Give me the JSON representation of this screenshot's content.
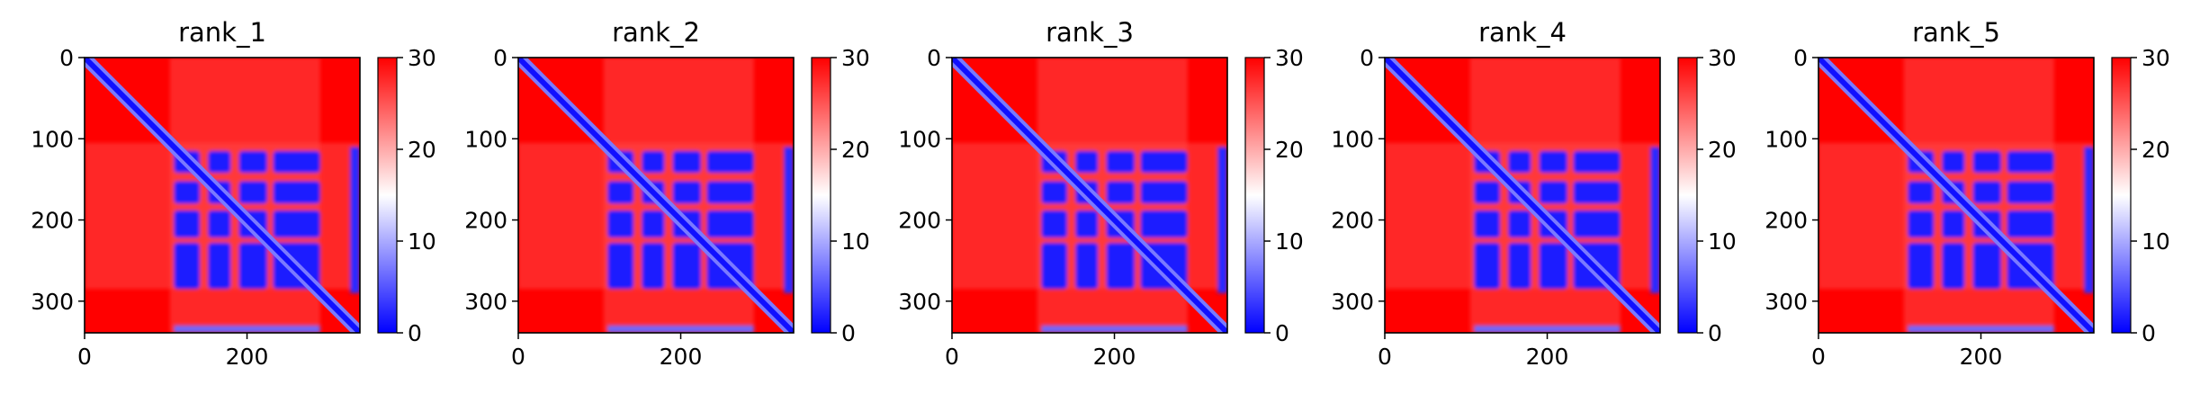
{
  "colors": {
    "high": "#ff0000",
    "mid": "#ffffff",
    "low": "#0000ff",
    "axis": "#000000"
  },
  "chart_data": [
    {
      "type": "heatmap",
      "title": "rank_1",
      "n": 339,
      "xticks": [
        0,
        200
      ],
      "yticks": [
        0,
        100,
        200,
        300
      ],
      "colorbar": {
        "colormap": "bwr",
        "range": [
          0,
          30
        ],
        "ticks": [
          0,
          10,
          20,
          30
        ]
      },
      "low_block": {
        "rows": [
          115,
          285
        ],
        "cols": [
          110,
          290
        ]
      }
    },
    {
      "type": "heatmap",
      "title": "rank_2",
      "n": 339,
      "xticks": [
        0,
        200
      ],
      "yticks": [
        0,
        100,
        200,
        300
      ],
      "colorbar": {
        "colormap": "bwr",
        "range": [
          0,
          30
        ],
        "ticks": [
          0,
          10,
          20,
          30
        ]
      },
      "low_block": {
        "rows": [
          115,
          285
        ],
        "cols": [
          110,
          290
        ]
      }
    },
    {
      "type": "heatmap",
      "title": "rank_3",
      "n": 339,
      "xticks": [
        0,
        200
      ],
      "yticks": [
        0,
        100,
        200,
        300
      ],
      "colorbar": {
        "colormap": "bwr",
        "range": [
          0,
          30
        ],
        "ticks": [
          0,
          10,
          20,
          30
        ]
      },
      "low_block": {
        "rows": [
          115,
          285
        ],
        "cols": [
          110,
          290
        ]
      }
    },
    {
      "type": "heatmap",
      "title": "rank_4",
      "n": 339,
      "xticks": [
        0,
        200
      ],
      "yticks": [
        0,
        100,
        200,
        300
      ],
      "colorbar": {
        "colormap": "bwr",
        "range": [
          0,
          30
        ],
        "ticks": [
          0,
          10,
          20,
          30
        ]
      },
      "low_block": {
        "rows": [
          115,
          285
        ],
        "cols": [
          110,
          290
        ]
      }
    },
    {
      "type": "heatmap",
      "title": "rank_5",
      "n": 339,
      "xticks": [
        0,
        200
      ],
      "yticks": [
        0,
        100,
        200,
        300
      ],
      "colorbar": {
        "colormap": "bwr",
        "range": [
          0,
          30
        ],
        "ticks": [
          0,
          10,
          20,
          30
        ]
      },
      "low_block": {
        "rows": [
          115,
          285
        ],
        "cols": [
          110,
          290
        ]
      }
    }
  ]
}
